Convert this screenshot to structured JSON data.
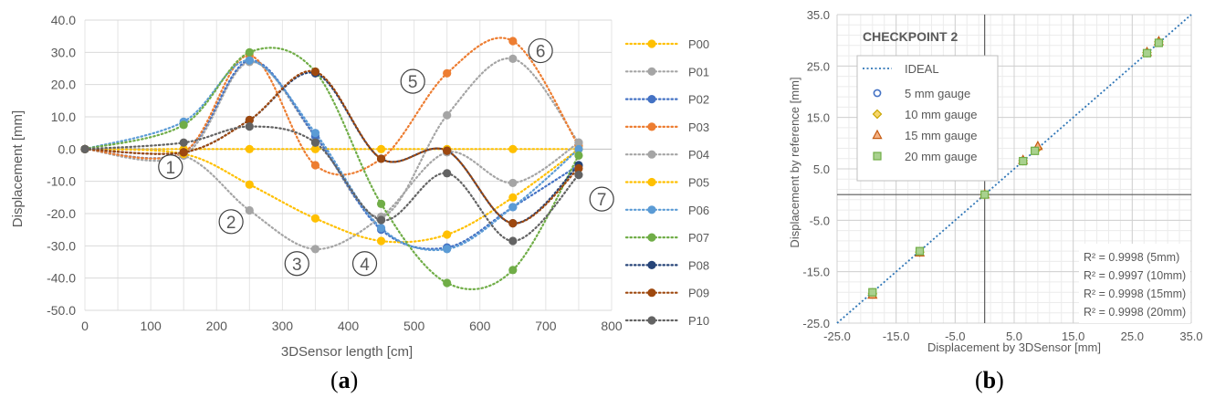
{
  "panel_labels": {
    "a_open": "(",
    "a_letter": "a",
    "a_close": ")",
    "b_open": "(",
    "b_letter": "b",
    "b_close": ")"
  },
  "chart_data": [
    {
      "type": "line",
      "title": "",
      "xlabel": "3DSensor length [cm]",
      "ylabel": "Displacement [mm]",
      "xlim": [
        0,
        800
      ],
      "ylim": [
        -50,
        40
      ],
      "xticks": [
        0,
        100,
        200,
        300,
        400,
        500,
        600,
        700,
        800
      ],
      "yticks": [
        40,
        30,
        20,
        10,
        0,
        -10,
        -20,
        -30,
        -40,
        -50
      ],
      "ytick_labels": [
        "40.0",
        "30.0",
        "20.0",
        "10.0",
        "0.0",
        "-10.0",
        "-20.0",
        "-30.0",
        "-40.0",
        "-50.0"
      ],
      "grid": true,
      "legend_position": "right",
      "x": [
        0,
        150,
        250,
        350,
        450,
        550,
        650,
        750
      ],
      "series": [
        {
          "name": "P00",
          "color": "#FFC000",
          "values": [
            0,
            0,
            0,
            0,
            0,
            0,
            0,
            0
          ]
        },
        {
          "name": "P01",
          "color": "#A5A5A5",
          "values": [
            0,
            -2,
            27,
            4,
            -21,
            10.5,
            28,
            2
          ]
        },
        {
          "name": "P02",
          "color": "#4472C4",
          "values": [
            0,
            -1,
            27.5,
            4,
            -25,
            -30.5,
            -18,
            -5
          ]
        },
        {
          "name": "P03",
          "color": "#ED7D31",
          "values": [
            0,
            -1,
            29,
            -5,
            -3,
            23.5,
            33.5,
            1
          ]
        },
        {
          "name": "P04",
          "color": "#A5A5A5",
          "values": [
            0,
            -2,
            -19,
            -31,
            -21,
            -1,
            -10.5,
            2
          ]
        },
        {
          "name": "P05",
          "color": "#FFC000",
          "values": [
            0,
            -1.5,
            -11,
            -21.5,
            -28.5,
            -26.5,
            -15,
            0
          ]
        },
        {
          "name": "P06",
          "color": "#5B9BD5",
          "values": [
            0,
            8.5,
            27.5,
            5,
            -24.5,
            -31,
            -18,
            0
          ]
        },
        {
          "name": "P07",
          "color": "#70AD47",
          "values": [
            0,
            7.5,
            30,
            24,
            -17,
            -41.5,
            -37.5,
            -2
          ]
        },
        {
          "name": "P08",
          "color": "#264478",
          "values": [
            0,
            -1,
            9,
            23.5,
            -3,
            -0.5,
            -23,
            -5
          ]
        },
        {
          "name": "P09",
          "color": "#9E480E",
          "values": [
            0,
            -1,
            9,
            24,
            -3,
            -0.5,
            -23,
            -6
          ]
        },
        {
          "name": "P10",
          "color": "#636363",
          "values": [
            0,
            2,
            7,
            2,
            -22,
            -7.5,
            -28.5,
            -8
          ]
        }
      ],
      "annotations": [
        {
          "text": "1",
          "x": 130,
          "y": -5.5
        },
        {
          "text": "2",
          "x": 222,
          "y": -22.5
        },
        {
          "text": "3",
          "x": 322,
          "y": -35.5
        },
        {
          "text": "4",
          "x": 425,
          "y": -35.5
        },
        {
          "text": "5",
          "x": 498,
          "y": 21
        },
        {
          "text": "6",
          "x": 692,
          "y": 30.5
        },
        {
          "text": "7",
          "x": 785,
          "y": -15.5
        }
      ]
    },
    {
      "type": "scatter",
      "title": "CHECKPOINT 2",
      "xlabel": "Displacement by 3DSensor [mm]",
      "ylabel": "Displacement by reference [mm]",
      "xlim": [
        -25,
        35
      ],
      "ylim": [
        -25,
        35
      ],
      "xticks": [
        -25,
        -15,
        -5,
        5,
        15,
        25,
        35
      ],
      "xtick_labels": [
        "-25.0",
        "-15.0",
        "-5.0",
        "5.0",
        "15.0",
        "25.0",
        "35.0"
      ],
      "yticks": [
        35,
        25,
        15,
        5,
        -5,
        -15,
        -25
      ],
      "ytick_labels": [
        "35.0",
        "25.0",
        "15.0",
        "5.0",
        "-5.0",
        "-15.0",
        "-25.0"
      ],
      "grid": true,
      "legend_position": "top-left",
      "ideal": {
        "name": "IDEAL",
        "color": "#2E75B6"
      },
      "series": [
        {
          "name": "5 mm gauge",
          "marker": "circle",
          "color": "#4472C4",
          "x": [
            -19,
            -11,
            0,
            6.5,
            8.5,
            27.5,
            29.5
          ],
          "y": [
            -19,
            -11,
            0,
            6.5,
            8.5,
            27.5,
            29.5
          ]
        },
        {
          "name": "10 mm gauge",
          "marker": "diamond",
          "color": "#C9A400",
          "x": [
            -19,
            -11,
            0,
            6.5,
            9,
            27.5,
            29.5
          ],
          "y": [
            -19.3,
            -11.2,
            0,
            6.6,
            9,
            27.6,
            29.7
          ]
        },
        {
          "name": "15 mm gauge",
          "marker": "triangle",
          "color": "#C55A11",
          "x": [
            -19,
            -11,
            0,
            6.5,
            9,
            27.5,
            29.5
          ],
          "y": [
            -19.5,
            -11.3,
            0,
            6.7,
            9.4,
            27.7,
            29.8
          ]
        },
        {
          "name": "20 mm  gauge",
          "marker": "square",
          "color": "#70AD47",
          "x": [
            -19,
            -11,
            0,
            6.5,
            8.5,
            27.5,
            29.5
          ],
          "y": [
            -19,
            -11,
            0,
            6.5,
            8.5,
            27.5,
            29.5
          ]
        }
      ],
      "r2_lines": [
        "R² = 0.9998 (5mm)",
        "R² = 0.9997 (10mm)",
        "R² = 0.9998 (15mm)",
        "R² = 0.9998 (20mm)"
      ]
    }
  ]
}
